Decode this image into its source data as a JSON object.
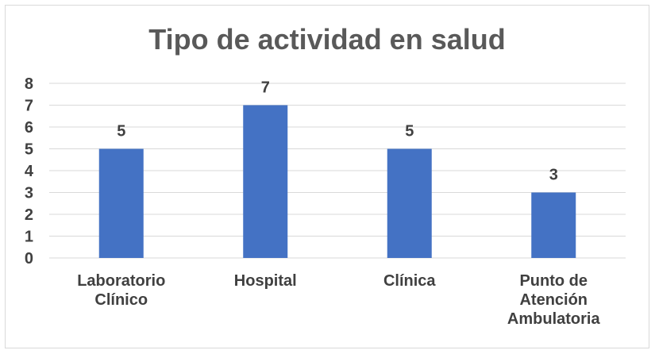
{
  "chart_data": {
    "type": "bar",
    "title": "Tipo de actividad en salud",
    "categories": [
      "Laboratorio Clínico",
      "Hospital",
      "Clínica",
      "Punto de Atención Ambulatoria"
    ],
    "category_lines": [
      [
        "Laboratorio",
        "Clínico"
      ],
      [
        "Hospital"
      ],
      [
        "Clínica"
      ],
      [
        "Punto de",
        "Atención",
        "Ambulatoria"
      ]
    ],
    "values": [
      5,
      7,
      5,
      3
    ],
    "xlabel": "",
    "ylabel": "",
    "ylim": [
      0,
      8
    ],
    "yticks": [
      0,
      1,
      2,
      3,
      4,
      5,
      6,
      7,
      8
    ],
    "grid": true,
    "legend": "none",
    "data_labels": true,
    "colors": {
      "bar": "#4472c4",
      "grid": "#d9d9d9",
      "text": "#404040",
      "title": "#595959"
    }
  }
}
